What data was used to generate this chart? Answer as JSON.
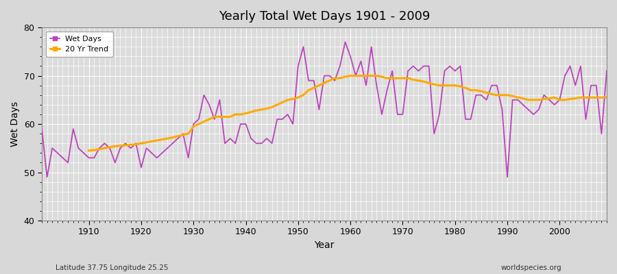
{
  "title": "Yearly Total Wet Days 1901 - 2009",
  "xlabel": "Year",
  "ylabel": "Wet Days",
  "lat_lon_label": "Latitude 37.75 Longitude 25.25",
  "watermark": "worldspecies.org",
  "ylim": [
    40,
    80
  ],
  "xlim": [
    1901,
    2009
  ],
  "fig_bg_color": "#d8d8d8",
  "plot_bg_color": "#dcdcdc",
  "line_color": "#bb44bb",
  "trend_color": "#ffaa00",
  "legend_line": "Wet Days",
  "legend_trend": "20 Yr Trend",
  "years": [
    1901,
    1902,
    1903,
    1904,
    1905,
    1906,
    1907,
    1908,
    1909,
    1910,
    1911,
    1912,
    1913,
    1914,
    1915,
    1916,
    1917,
    1918,
    1919,
    1920,
    1921,
    1922,
    1923,
    1924,
    1925,
    1926,
    1927,
    1928,
    1929,
    1930,
    1931,
    1932,
    1933,
    1934,
    1935,
    1936,
    1937,
    1938,
    1939,
    1940,
    1941,
    1942,
    1943,
    1944,
    1945,
    1946,
    1947,
    1948,
    1949,
    1950,
    1951,
    1952,
    1953,
    1954,
    1955,
    1956,
    1957,
    1958,
    1959,
    1960,
    1961,
    1962,
    1963,
    1964,
    1965,
    1966,
    1967,
    1968,
    1969,
    1970,
    1971,
    1972,
    1973,
    1974,
    1975,
    1976,
    1977,
    1978,
    1979,
    1980,
    1981,
    1982,
    1983,
    1984,
    1985,
    1986,
    1987,
    1988,
    1989,
    1990,
    1991,
    1992,
    1993,
    1994,
    1995,
    1996,
    1997,
    1998,
    1999,
    2000,
    2001,
    2002,
    2003,
    2004,
    2005,
    2006,
    2007,
    2008,
    2009
  ],
  "wet_days": [
    59,
    49,
    55,
    54,
    53,
    52,
    59,
    55,
    54,
    53,
    53,
    55,
    56,
    55,
    52,
    55,
    56,
    55,
    56,
    51,
    55,
    54,
    53,
    54,
    55,
    56,
    57,
    58,
    53,
    60,
    61,
    66,
    64,
    61,
    65,
    56,
    57,
    56,
    60,
    60,
    57,
    56,
    56,
    57,
    56,
    61,
    61,
    62,
    60,
    72,
    76,
    69,
    69,
    63,
    70,
    70,
    69,
    72,
    77,
    74,
    70,
    73,
    68,
    76,
    68,
    62,
    67,
    71,
    62,
    62,
    71,
    72,
    71,
    72,
    72,
    58,
    62,
    71,
    72,
    71,
    72,
    61,
    61,
    66,
    66,
    65,
    68,
    68,
    63,
    49,
    65,
    65,
    64,
    63,
    62,
    63,
    66,
    65,
    64,
    65,
    70,
    72,
    68,
    72,
    61,
    68,
    68,
    58,
    71
  ],
  "trend_years": [
    1910,
    1911,
    1912,
    1913,
    1914,
    1915,
    1916,
    1917,
    1918,
    1919,
    1920,
    1921,
    1922,
    1923,
    1924,
    1925,
    1926,
    1927,
    1928,
    1929,
    1930,
    1931,
    1932,
    1933,
    1934,
    1935,
    1936,
    1937,
    1938,
    1939,
    1940,
    1941,
    1942,
    1943,
    1944,
    1945,
    1946,
    1947,
    1948,
    1949,
    1950,
    1951,
    1952,
    1953,
    1954,
    1955,
    1956,
    1957,
    1958,
    1959,
    1960,
    1961,
    1962,
    1963,
    1964,
    1965,
    1966,
    1967,
    1968,
    1969,
    1970,
    1971,
    1972,
    1973,
    1974,
    1975,
    1976,
    1977,
    1978,
    1979,
    1980,
    1981,
    1982,
    1983,
    1984,
    1985,
    1986,
    1987,
    1988,
    1989,
    1990,
    1991,
    1992,
    1993,
    1994,
    1995,
    1996,
    1997,
    1998,
    1999,
    2000,
    2001,
    2002,
    2003,
    2004,
    2005,
    2006,
    2007,
    2008,
    2009
  ],
  "trend_vals": [
    54.5,
    54.6,
    54.8,
    55.0,
    55.2,
    55.4,
    55.5,
    55.6,
    55.7,
    55.8,
    56.0,
    56.2,
    56.4,
    56.6,
    56.8,
    57.0,
    57.2,
    57.5,
    57.8,
    58.0,
    59.5,
    60.0,
    60.5,
    61.0,
    61.5,
    61.5,
    61.5,
    61.5,
    62.0,
    62.0,
    62.2,
    62.5,
    62.8,
    63.0,
    63.2,
    63.5,
    64.0,
    64.5,
    65.0,
    65.2,
    65.5,
    66.0,
    67.0,
    67.5,
    68.0,
    68.5,
    69.0,
    69.5,
    69.5,
    69.8,
    70.0,
    70.0,
    70.0,
    70.0,
    70.0,
    70.0,
    69.8,
    69.5,
    69.5,
    69.5,
    69.5,
    69.5,
    69.2,
    69.0,
    68.8,
    68.5,
    68.2,
    68.0,
    68.0,
    68.0,
    68.0,
    67.8,
    67.5,
    67.0,
    67.0,
    66.8,
    66.5,
    66.2,
    66.0,
    66.0,
    66.0,
    65.8,
    65.5,
    65.3,
    65.0,
    65.0,
    65.0,
    65.2,
    65.3,
    65.5,
    65.0,
    65.0,
    65.2,
    65.3,
    65.5,
    65.5,
    65.5,
    65.5,
    65.5,
    65.5
  ]
}
